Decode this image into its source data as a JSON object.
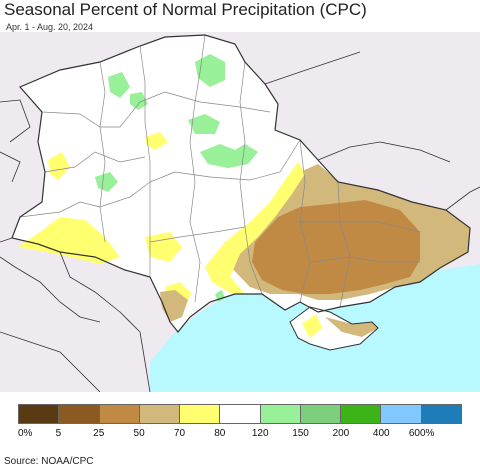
{
  "title": "Seasonal Percent of Normal Precipitation (CPC)",
  "subtitle": "Apr. 1 - Aug. 20, 2024",
  "source": "Source: NOAA/CPC",
  "legend": {
    "colors": [
      "#5a3a12",
      "#8b5a22",
      "#c08a45",
      "#d2b87a",
      "#ffff70",
      "#ffffff",
      "#98f098",
      "#7cd07c",
      "#3cb418",
      "#82c8ff",
      "#1e7cb8"
    ],
    "labels": [
      "0%",
      "5",
      "25",
      "50",
      "70",
      "80",
      "120",
      "150",
      "200",
      "400",
      "600%"
    ]
  },
  "map_colors": {
    "land": "#ffffff",
    "outside": "#efeaf0",
    "sea": "#b8f8ff",
    "dry_50": "#d2b87a",
    "dry_25": "#c08a45",
    "near_70": "#ffff70",
    "wet_150": "#98f098",
    "border": "#333333",
    "oblast": "#888888"
  }
}
